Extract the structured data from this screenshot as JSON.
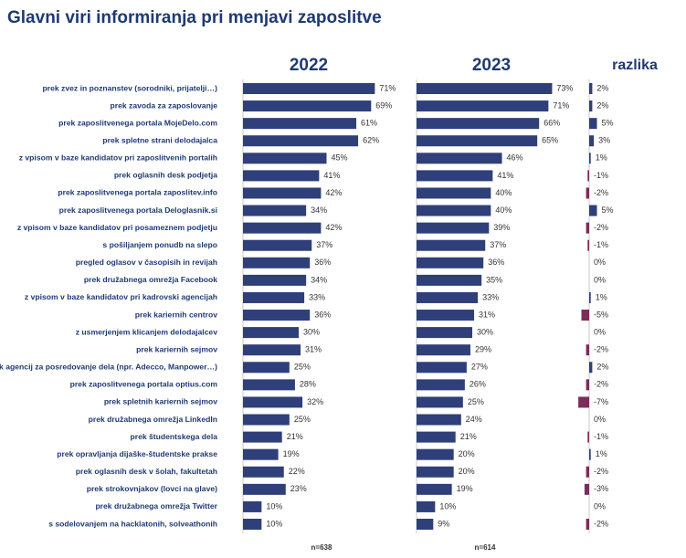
{
  "title": "Glavni viri informiranja pri menjavi zaposlitve",
  "chart_data": [
    {
      "type": "bar",
      "orientation": "horizontal",
      "title": "2022",
      "note": "n=638",
      "color": "#2e3f7a",
      "xlim": [
        0,
        90
      ],
      "categories": [
        "prek zvez in poznanstev (sorodniki, prijatelji…)",
        "prek zavoda za zaposlovanje",
        "prek zaposlitvenega portala MojeDelo.com",
        "prek spletne strani delodajalca",
        "z vpisom v baze kandidatov pri zaposlitvenih portalih",
        "prek oglasnih desk podjetja",
        "prek zaposlitvenega portala zaposlitev.info",
        "prek zaposlitvenega portala Deloglasnik.si",
        "z vpisom v baze kandidatov pri posameznem podjetju",
        "s pošiljanjem ponudb na slepo",
        "pregled oglasov v časopisih in revijah",
        "prek družabnega omrežja Facebook",
        "z vpisom v baze kandidatov pri kadrovski agencijah",
        "prek kariernih centrov",
        "z usmerjenjem klicanjem delodajalcev",
        "prek kariernih sejmov",
        "prek agencij za posredovanje dela (npr. Adecco, Manpower…)",
        "prek zaposlitvenega portala optius.com",
        "prek spletnih kariernih sejmov",
        "prek družabnega omrežja LinkedIn",
        "prek študentskega dela",
        "prek opravljanja dijaške-študentske prakse",
        "prek oglasnih desk v šolah, fakultetah",
        "prek strokovnjakov (lovci na glave)",
        "prek družabnega omrežja Twitter",
        "s sodelovanjem na hacklatonih, solveathonih"
      ],
      "values": [
        71,
        69,
        61,
        62,
        45,
        41,
        42,
        34,
        42,
        37,
        36,
        34,
        33,
        36,
        30,
        31,
        25,
        28,
        32,
        25,
        21,
        19,
        22,
        23,
        10,
        10
      ],
      "value_labels": [
        "71%",
        "69%",
        "61%",
        "62%",
        "45%",
        "41%",
        "42%",
        "34%",
        "42%",
        "37%",
        "36%",
        "34%",
        "33%",
        "36%",
        "30%",
        "31%",
        "25%",
        "28%",
        "32%",
        "25%",
        "21%",
        "19%",
        "22%",
        "23%",
        "10%",
        "10%"
      ]
    },
    {
      "type": "bar",
      "orientation": "horizontal",
      "title": "2023",
      "note": "n=614",
      "color": "#2e3f7a",
      "xlim": [
        0,
        90
      ],
      "values": [
        73,
        71,
        66,
        65,
        46,
        41,
        40,
        40,
        39,
        37,
        36,
        35,
        33,
        31,
        30,
        29,
        27,
        26,
        25,
        24,
        21,
        20,
        20,
        19,
        10,
        9
      ],
      "value_labels": [
        "73%",
        "71%",
        "66%",
        "65%",
        "46%",
        "41%",
        "40%",
        "40%",
        "39%",
        "37%",
        "36%",
        "35%",
        "33%",
        "31%",
        "30%",
        "29%",
        "27%",
        "26%",
        "25%",
        "24%",
        "21%",
        "20%",
        "20%",
        "19%",
        "10%",
        "9%"
      ]
    },
    {
      "type": "bar",
      "orientation": "horizontal",
      "title": "razlika",
      "color": "#2e3f7a",
      "negative_color": "#7b2c5a",
      "xlim": [
        -20,
        20
      ],
      "values": [
        2,
        2,
        5,
        3,
        1,
        -1,
        -2,
        5,
        -2,
        -1,
        0,
        0,
        1,
        -5,
        0,
        -2,
        2,
        -2,
        -7,
        0,
        -1,
        1,
        -2,
        -3,
        0,
        -2
      ],
      "value_labels": [
        "2%",
        "2%",
        "5%",
        "3%",
        "1%",
        "-1%",
        "-2%",
        "5%",
        "-2%",
        "-1%",
        "0%",
        "0%",
        "1%",
        "-5%",
        "0%",
        "-2%",
        "2%",
        "-2%",
        "-7%",
        "0%",
        "-1%",
        "1%",
        "-2%",
        "-3%",
        "0%",
        "-2%"
      ]
    }
  ]
}
